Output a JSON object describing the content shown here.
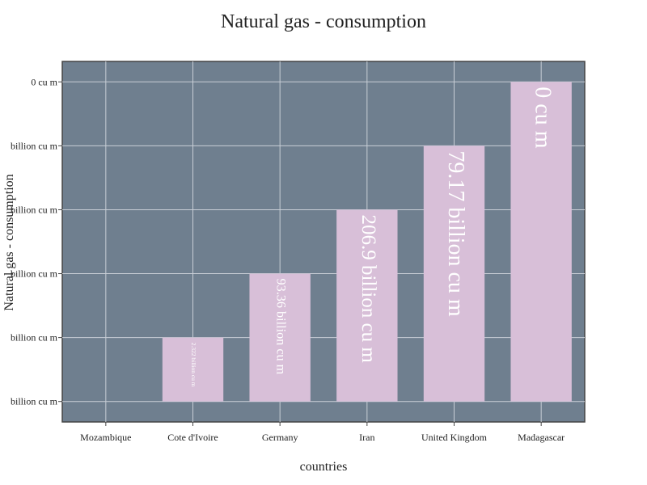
{
  "chart_data": {
    "type": "bar",
    "title": "Natural gas - consumption",
    "xlabel": "countries",
    "ylabel": "Natural gas - consumption",
    "categories": [
      "Mozambique",
      "Cote d'Ivoire",
      "Germany",
      "Iran",
      "United Kingdom",
      "Madagascar"
    ],
    "values": [
      0,
      1,
      2,
      3,
      4,
      5
    ],
    "bar_labels": [
      "",
      "2.322 billion cu m",
      "93.36 billion cu m",
      "206.9 billion cu m",
      "79.17 billion cu m",
      "0 cu m"
    ],
    "y_tick_labels": [
      "billion cu m",
      "billion cu m",
      "billion cu m",
      "billion cu m",
      "billion cu m",
      "0 cu m"
    ],
    "ylim": [
      -0.32,
      5.32
    ],
    "grid": true,
    "colors": {
      "plot_background": "#6f7f8f",
      "bar": "#d8bfd8",
      "grid": "#c8ced6",
      "bar_label": "#ffffff"
    }
  }
}
